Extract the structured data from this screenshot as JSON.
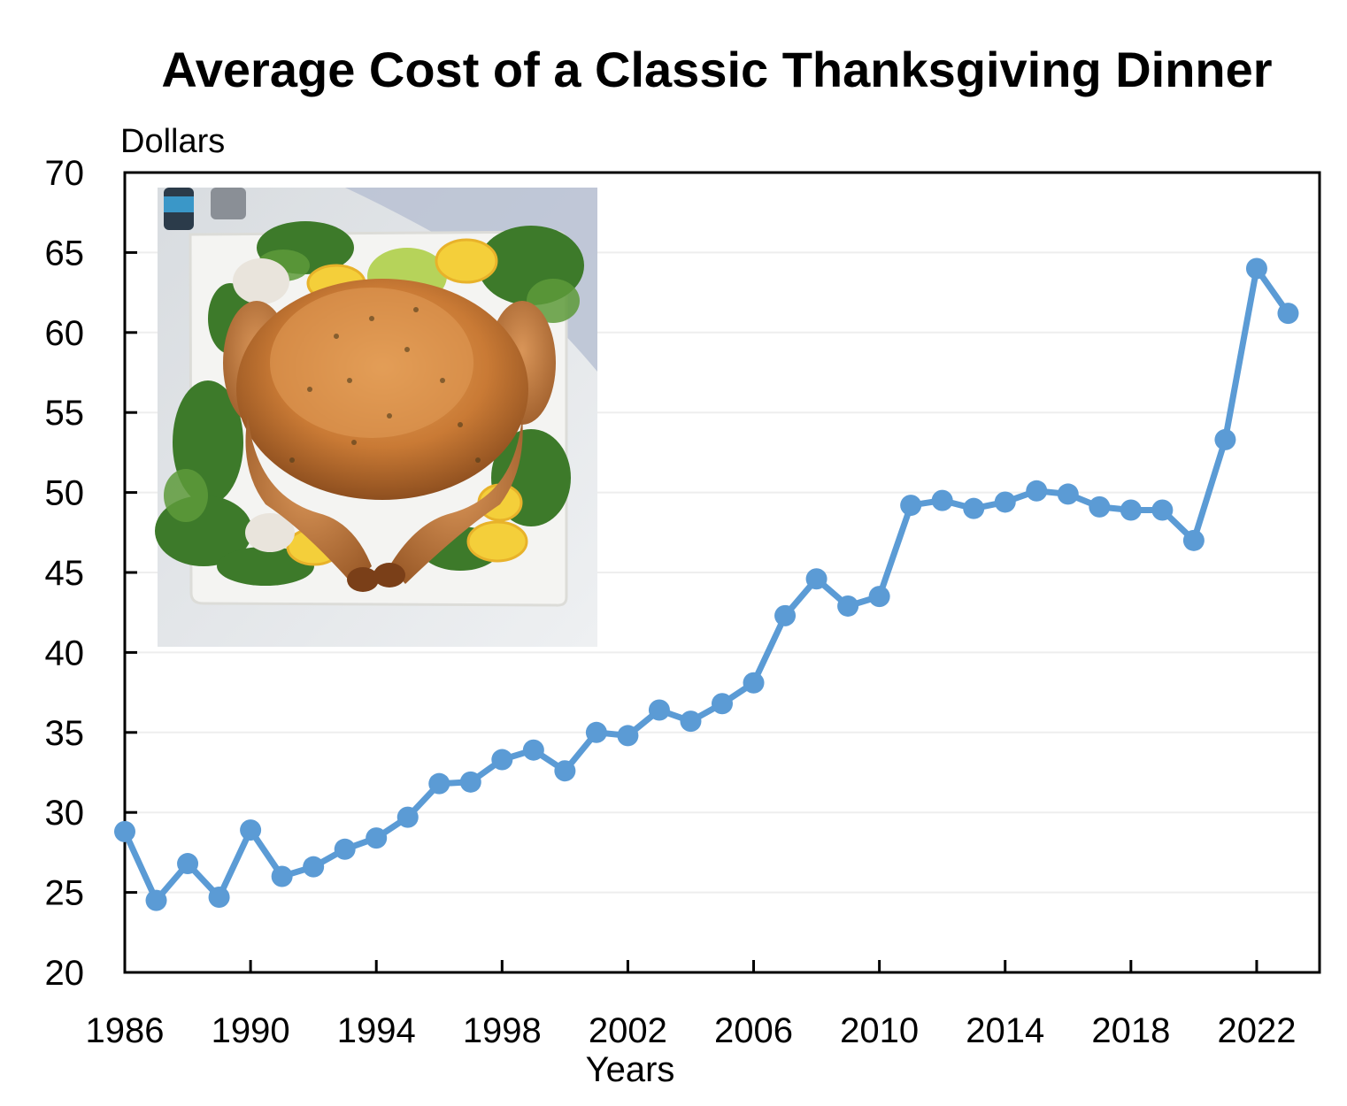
{
  "chart_data": {
    "type": "line",
    "title": "Average Cost of a Classic Thanksgiving Dinner",
    "ylabel": "Dollars",
    "xlabel": "Years",
    "ylim": [
      20,
      70
    ],
    "xlim": [
      1986,
      2024
    ],
    "yticks": [
      20,
      25,
      30,
      35,
      40,
      45,
      50,
      55,
      60,
      65,
      70
    ],
    "xticks": [
      1986,
      1990,
      1994,
      1998,
      2002,
      2006,
      2010,
      2014,
      2018,
      2022
    ],
    "grid": true,
    "line_color": "#5b9bd5",
    "has_inset_photo": true,
    "photo_subject": "roast-turkey-icon",
    "series": [
      {
        "x": [
          1986,
          1987,
          1988,
          1989,
          1990,
          1991,
          1992,
          1993,
          1994,
          1995,
          1996,
          1997,
          1998,
          1999,
          2000,
          2001,
          2002,
          2003,
          2004,
          2005,
          2006,
          2007,
          2008,
          2009,
          2010,
          2011,
          2012,
          2013,
          2014,
          2015,
          2016,
          2017,
          2018,
          2019,
          2020,
          2021,
          2022,
          2023
        ],
        "values": [
          28.8,
          24.5,
          26.8,
          24.7,
          28.9,
          26.0,
          26.6,
          27.7,
          28.4,
          29.7,
          31.8,
          31.9,
          33.3,
          33.9,
          32.6,
          35.0,
          34.8,
          36.4,
          35.7,
          36.8,
          38.1,
          42.3,
          44.6,
          42.9,
          43.5,
          49.2,
          49.5,
          49.0,
          49.4,
          50.1,
          49.9,
          49.1,
          48.9,
          48.9,
          47.0,
          53.3,
          64.0,
          61.2
        ]
      }
    ]
  }
}
